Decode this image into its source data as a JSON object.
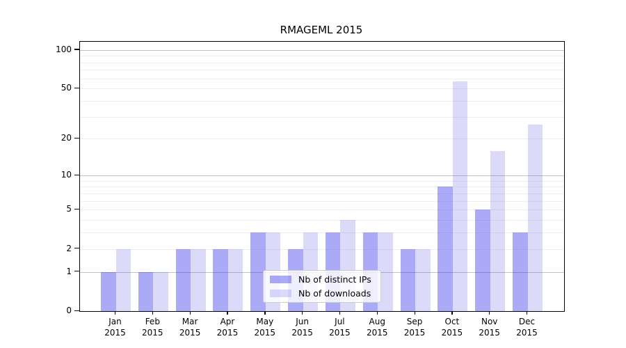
{
  "chart_data": {
    "type": "bar",
    "title": "RMAGEML 2015",
    "categories": [
      "Jan",
      "Feb",
      "Mar",
      "Apr",
      "May",
      "Jun",
      "Jul",
      "Aug",
      "Sep",
      "Oct",
      "Nov",
      "Dec"
    ],
    "category_year": "2015",
    "series": [
      {
        "name": "Nb of distinct IPs",
        "color": "rgba(43,43,232,0.4)",
        "values": [
          1,
          1,
          2,
          2,
          3,
          2,
          3,
          3,
          2,
          8,
          5,
          3
        ]
      },
      {
        "name": "Nb of downloads",
        "color": "rgba(75,75,225,0.2)",
        "values": [
          2,
          1,
          2,
          2,
          3,
          3,
          4,
          3,
          2,
          57,
          16,
          26
        ]
      }
    ],
    "yscale": "log1p",
    "ylim": [
      0,
      116
    ],
    "yticks": [
      0,
      1,
      2,
      5,
      10,
      20,
      50,
      100
    ],
    "major_gridlines": [
      1,
      10,
      100
    ],
    "minor_gridlines": [
      2,
      3,
      4,
      5,
      6,
      7,
      8,
      9,
      20,
      30,
      40,
      50,
      60,
      70,
      80,
      90
    ],
    "grid": true,
    "legend_position": "lower-center",
    "xlabel": "",
    "ylabel": ""
  },
  "colors": {
    "axis": "#000000",
    "major_grid": "#c2c2c2",
    "minor_grid": "#efefef",
    "legend_border": "#cccccc"
  }
}
